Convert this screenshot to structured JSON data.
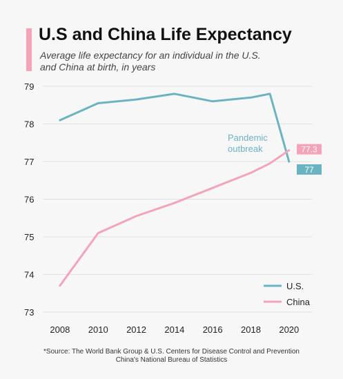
{
  "header": {
    "title": "U.S and China Life Expectancy",
    "subtitle": "Average life expectancy for an individual in the U.S. and China at birth, in years"
  },
  "chart_data": {
    "type": "line",
    "title": "U.S and China Life Expectancy",
    "subtitle": "Average life expectancy for an individual in the U.S. and China at birth, in years",
    "xlabel": "",
    "ylabel": "",
    "xlim": [
      2007.1,
      2021.2
    ],
    "ylim": [
      73,
      79
    ],
    "x_ticks": [
      "2008",
      "2010",
      "2012",
      "2014",
      "2016",
      "2018",
      "2020"
    ],
    "y_ticks": [
      "73",
      "74",
      "75",
      "76",
      "77",
      "78",
      "79"
    ],
    "grid": "horizontal",
    "legend_position": "bottom-right",
    "series": [
      {
        "name": "U.S.",
        "color": "#6bb3c2",
        "x": [
          2008,
          2010,
          2012,
          2014,
          2016,
          2018,
          2019,
          2020
        ],
        "y": [
          78.1,
          78.55,
          78.65,
          78.8,
          78.6,
          78.7,
          78.8,
          77.0
        ],
        "end_label": "77"
      },
      {
        "name": "China",
        "color": "#f4a3b8",
        "x": [
          2008,
          2010,
          2012,
          2014,
          2016,
          2018,
          2019,
          2020
        ],
        "y": [
          73.7,
          75.1,
          75.55,
          75.9,
          76.3,
          76.7,
          76.95,
          77.3
        ],
        "end_label": "77.3"
      }
    ],
    "annotations": [
      {
        "text_line1": "Pandemic",
        "text_line2": "outbreak",
        "color": "#6bb3c2"
      }
    ]
  },
  "source": {
    "line1": "*Source: The World Bank Group & U.S. Centers for Disease Control and Prevention",
    "line2": "China's National Bureau of Statistics"
  }
}
